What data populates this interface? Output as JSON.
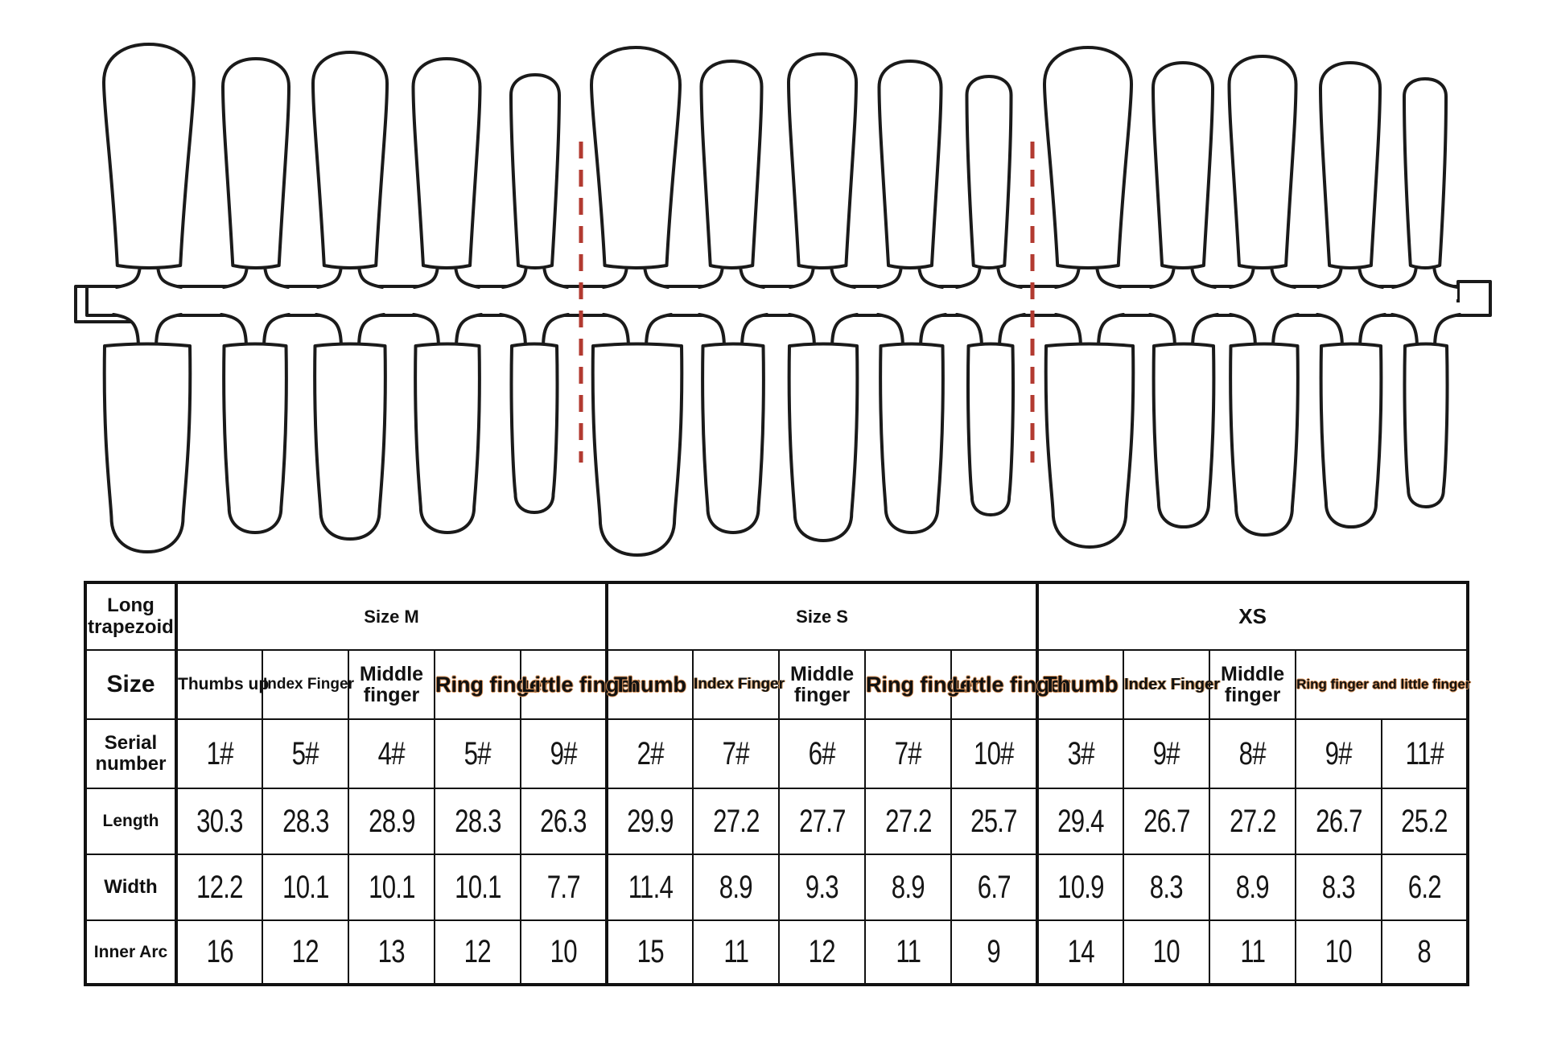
{
  "illustration": {
    "divider_color": "#b23a30",
    "outline_color": "#1a1a1a"
  },
  "table": {
    "corner_label": "Long trapezoid",
    "group_headers": [
      "Size M",
      "Size S",
      "XS"
    ],
    "row_labels": {
      "size": "Size",
      "serial": "Serial number",
      "length": "Length",
      "width": "Width",
      "inner_arc": "Inner Arc"
    },
    "finger_headers": [
      "Thumbs up",
      "Index Finger",
      "Middle finger",
      "Ring finger",
      "Little finger",
      "Thumb",
      "Index Finger",
      "Middle finger",
      "Ring finger",
      "Little finger",
      "Thumb",
      "Index Finger",
      "Middle finger",
      "Ring finger and little finger"
    ],
    "serials": [
      "1#",
      "5#",
      "4#",
      "5#",
      "9#",
      "2#",
      "7#",
      "6#",
      "7#",
      "10#",
      "3#",
      "9#",
      "8#",
      "9#",
      "11#"
    ],
    "lengths": [
      "30.3",
      "28.3",
      "28.9",
      "28.3",
      "26.3",
      "29.9",
      "27.2",
      "27.7",
      "27.2",
      "25.7",
      "29.4",
      "26.7",
      "27.2",
      "26.7",
      "25.2"
    ],
    "widths": [
      "12.2",
      "10.1",
      "10.1",
      "10.1",
      "7.7",
      "11.4",
      "8.9",
      "9.3",
      "8.9",
      "6.7",
      "10.9",
      "8.3",
      "8.9",
      "8.3",
      "6.2"
    ],
    "inner_arcs": [
      "16",
      "12",
      "13",
      "12",
      "10",
      "15",
      "11",
      "12",
      "11",
      "9",
      "14",
      "10",
      "11",
      "10",
      "8"
    ]
  }
}
